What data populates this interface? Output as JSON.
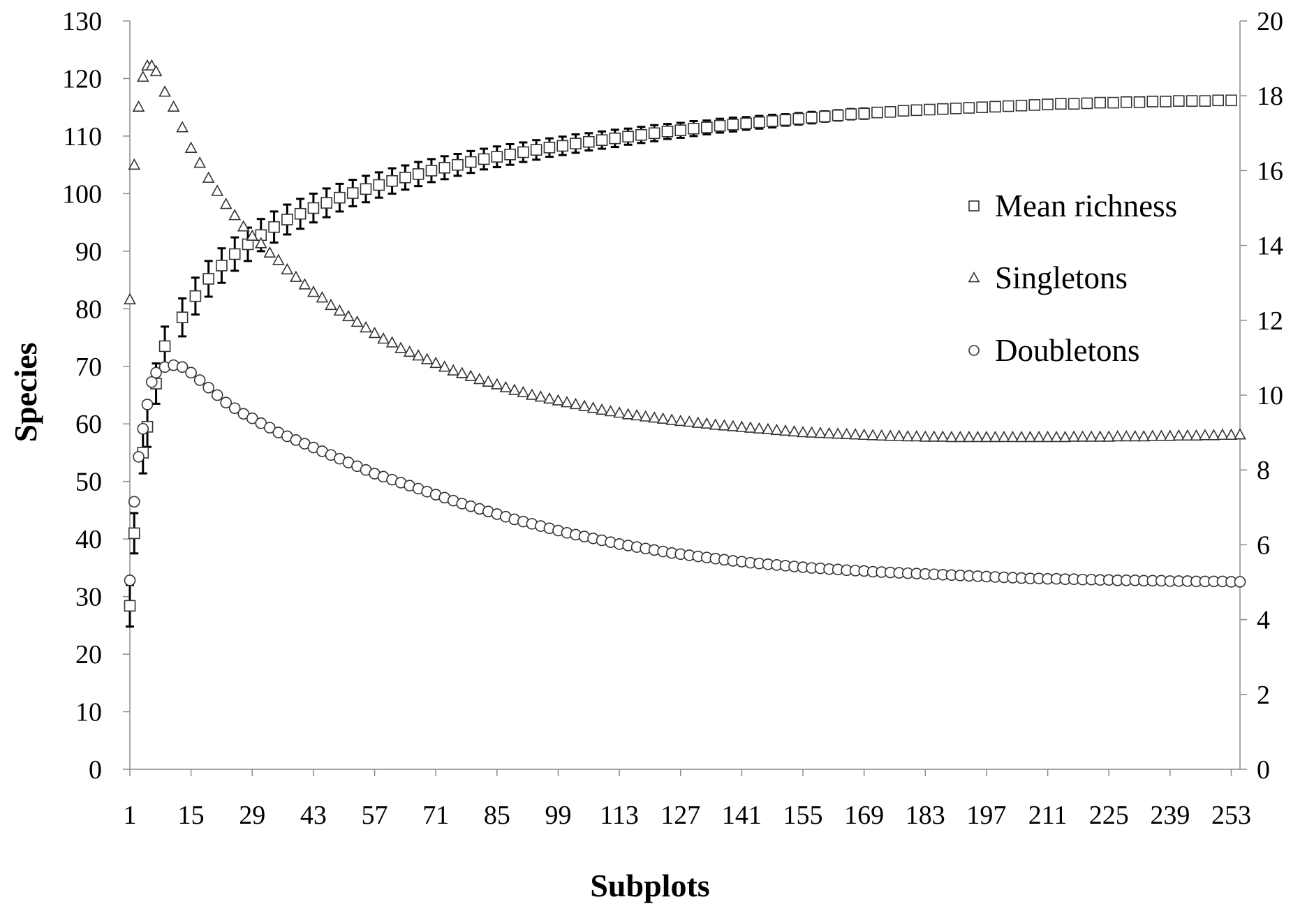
{
  "chart_data": {
    "type": "scatter",
    "xlabel": "Subplots",
    "ylabel": "Species",
    "x_ticks": [
      "1",
      "15",
      "29",
      "43",
      "57",
      "71",
      "85",
      "99",
      "113",
      "127",
      "141",
      "155",
      "169",
      "183",
      "197",
      "211",
      "225",
      "239",
      "253"
    ],
    "y_left_ticks": [
      "0",
      "10",
      "20",
      "30",
      "40",
      "50",
      "60",
      "70",
      "80",
      "90",
      "100",
      "110",
      "120",
      "130"
    ],
    "y_right_ticks": [
      "0",
      "2",
      "4",
      "6",
      "8",
      "10",
      "12",
      "14",
      "16",
      "18",
      "20"
    ],
    "xlim": [
      1,
      255
    ],
    "ylim_left": [
      0,
      130
    ],
    "ylim_right": [
      0,
      20
    ],
    "legend_position": "right",
    "series": [
      {
        "name": "Mean richness",
        "marker": "square",
        "axis": "left",
        "x": [
          1,
          2,
          4,
          5,
          7,
          9,
          13,
          16,
          19,
          22,
          25,
          28,
          31,
          34,
          37,
          40,
          43,
          46,
          49,
          52,
          55,
          58,
          61,
          64,
          67,
          70,
          73,
          76,
          79,
          82,
          85,
          88,
          91,
          94,
          97,
          100,
          103,
          106,
          109,
          112,
          115,
          118,
          121,
          124,
          127,
          130,
          133,
          136,
          139,
          142,
          145,
          148,
          151,
          154,
          157,
          160,
          163,
          166,
          169,
          172,
          175,
          178,
          181,
          184,
          187,
          190,
          193,
          196,
          199,
          202,
          205,
          208,
          211,
          214,
          217,
          220,
          223,
          226,
          229,
          232,
          235,
          238,
          241,
          244,
          247,
          250,
          253
        ],
        "values": [
          28.4,
          41.0,
          55.0,
          59.5,
          67.0,
          73.5,
          78.5,
          82.2,
          85.2,
          87.5,
          89.5,
          91.2,
          92.8,
          94.2,
          95.5,
          96.5,
          97.5,
          98.4,
          99.3,
          100.1,
          100.8,
          101.5,
          102.2,
          102.8,
          103.4,
          104.0,
          104.5,
          105.0,
          105.5,
          106.0,
          106.4,
          106.8,
          107.2,
          107.6,
          108.0,
          108.3,
          108.7,
          109.0,
          109.3,
          109.6,
          109.9,
          110.2,
          110.5,
          110.8,
          111.0,
          111.3,
          111.5,
          111.8,
          112.0,
          112.2,
          112.4,
          112.6,
          112.8,
          113.0,
          113.2,
          113.4,
          113.6,
          113.8,
          113.9,
          114.1,
          114.2,
          114.4,
          114.5,
          114.6,
          114.7,
          114.8,
          114.9,
          115.0,
          115.1,
          115.2,
          115.3,
          115.4,
          115.5,
          115.6,
          115.6,
          115.7,
          115.8,
          115.8,
          115.9,
          115.9,
          116.0,
          116.0,
          116.1,
          116.1,
          116.1,
          116.2,
          116.2
        ],
        "error": [
          3.6,
          3.5,
          3.6,
          3.5,
          3.5,
          3.4,
          3.3,
          3.2,
          3.1,
          3.0,
          2.9,
          2.9,
          2.8,
          2.7,
          2.6,
          2.6,
          2.5,
          2.5,
          2.4,
          2.3,
          2.3,
          2.2,
          2.2,
          2.1,
          2.1,
          2.0,
          2.0,
          1.9,
          1.9,
          1.8,
          1.8,
          1.8,
          1.7,
          1.7,
          1.6,
          1.6,
          1.6,
          1.5,
          1.5,
          1.5,
          1.4,
          1.4,
          1.4,
          1.3,
          1.3,
          1.3,
          1.2,
          1.2,
          1.2,
          1.1,
          1.1,
          1.1,
          1.0,
          1.0,
          1.0,
          0.9,
          0.9,
          0.9,
          0.9,
          0.8,
          0.8,
          0.8,
          0.7,
          0.7,
          0.7,
          0.7,
          0.6,
          0.6,
          0.6,
          0.5,
          0.5,
          0.5,
          0.5,
          0.4,
          0.4,
          0.4,
          0.3,
          0.3,
          0.3,
          0.2,
          0.2,
          0.2,
          0.1,
          0.1,
          0.1,
          0.0,
          0.0
        ]
      },
      {
        "name": "Singletons",
        "marker": "triangle",
        "axis": "right",
        "x": [
          1,
          2,
          3,
          4,
          5,
          6,
          7,
          9,
          11,
          13,
          15,
          17,
          19,
          21,
          23,
          25,
          27,
          29,
          31,
          33,
          35,
          37,
          39,
          41,
          43,
          45,
          47,
          49,
          51,
          53,
          55,
          57,
          59,
          61,
          63,
          65,
          67,
          69,
          71,
          73,
          75,
          77,
          79,
          81,
          83,
          85,
          87,
          89,
          91,
          93,
          95,
          97,
          99,
          101,
          103,
          105,
          107,
          109,
          111,
          113,
          115,
          117,
          119,
          121,
          123,
          125,
          127,
          129,
          131,
          133,
          135,
          137,
          139,
          141,
          143,
          145,
          147,
          149,
          151,
          153,
          155,
          157,
          159,
          161,
          163,
          165,
          167,
          169,
          171,
          173,
          175,
          177,
          179,
          181,
          183,
          185,
          187,
          189,
          191,
          193,
          195,
          197,
          199,
          201,
          203,
          205,
          207,
          209,
          211,
          213,
          215,
          217,
          219,
          221,
          223,
          225,
          227,
          229,
          231,
          233,
          235,
          237,
          239,
          241,
          243,
          245,
          247,
          249,
          251,
          253,
          255
        ],
        "values": [
          12.55,
          16.15,
          17.7,
          18.5,
          18.8,
          18.8,
          18.65,
          18.1,
          17.7,
          17.15,
          16.6,
          16.2,
          15.8,
          15.45,
          15.1,
          14.8,
          14.5,
          14.25,
          14.05,
          13.8,
          13.6,
          13.35,
          13.15,
          12.95,
          12.75,
          12.6,
          12.4,
          12.25,
          12.1,
          11.95,
          11.8,
          11.65,
          11.5,
          11.4,
          11.25,
          11.15,
          11.05,
          10.95,
          10.85,
          10.75,
          10.65,
          10.58,
          10.5,
          10.42,
          10.35,
          10.28,
          10.2,
          10.13,
          10.07,
          10.0,
          9.95,
          9.9,
          9.85,
          9.8,
          9.75,
          9.7,
          9.65,
          9.6,
          9.56,
          9.52,
          9.48,
          9.45,
          9.42,
          9.39,
          9.36,
          9.33,
          9.3,
          9.28,
          9.25,
          9.23,
          9.2,
          9.18,
          9.16,
          9.14,
          9.12,
          9.1,
          9.08,
          9.06,
          9.04,
          9.02,
          9.0,
          8.99,
          8.98,
          8.97,
          8.96,
          8.95,
          8.94,
          8.93,
          8.92,
          8.91,
          8.9,
          8.9,
          8.89,
          8.89,
          8.88,
          8.88,
          8.88,
          8.87,
          8.87,
          8.87,
          8.87,
          8.87,
          8.87,
          8.87,
          8.87,
          8.87,
          8.87,
          8.87,
          8.87,
          8.87,
          8.87,
          8.88,
          8.88,
          8.88,
          8.88,
          8.88,
          8.89,
          8.89,
          8.89,
          8.89,
          8.9,
          8.9,
          8.9,
          8.91,
          8.91,
          8.91,
          8.92,
          8.92,
          8.93,
          8.93,
          8.94
        ]
      },
      {
        "name": "Doubletons",
        "marker": "circle",
        "axis": "right",
        "x": [
          1,
          2,
          3,
          4,
          5,
          6,
          7,
          9,
          11,
          13,
          15,
          17,
          19,
          21,
          23,
          25,
          27,
          29,
          31,
          33,
          35,
          37,
          39,
          41,
          43,
          45,
          47,
          49,
          51,
          53,
          55,
          57,
          59,
          61,
          63,
          65,
          67,
          69,
          71,
          73,
          75,
          77,
          79,
          81,
          83,
          85,
          87,
          89,
          91,
          93,
          95,
          97,
          99,
          101,
          103,
          105,
          107,
          109,
          111,
          113,
          115,
          117,
          119,
          121,
          123,
          125,
          127,
          129,
          131,
          133,
          135,
          137,
          139,
          141,
          143,
          145,
          147,
          149,
          151,
          153,
          155,
          157,
          159,
          161,
          163,
          165,
          167,
          169,
          171,
          173,
          175,
          177,
          179,
          181,
          183,
          185,
          187,
          189,
          191,
          193,
          195,
          197,
          199,
          201,
          203,
          205,
          207,
          209,
          211,
          213,
          215,
          217,
          219,
          221,
          223,
          225,
          227,
          229,
          231,
          233,
          235,
          237,
          239,
          241,
          243,
          245,
          247,
          249,
          251,
          253,
          255
        ],
        "values": [
          5.05,
          7.15,
          8.35,
          9.1,
          9.75,
          10.35,
          10.6,
          10.75,
          10.8,
          10.75,
          10.6,
          10.4,
          10.2,
          10.0,
          9.8,
          9.65,
          9.5,
          9.38,
          9.25,
          9.13,
          9.0,
          8.9,
          8.8,
          8.7,
          8.6,
          8.5,
          8.4,
          8.3,
          8.2,
          8.1,
          8.0,
          7.9,
          7.82,
          7.74,
          7.66,
          7.58,
          7.5,
          7.42,
          7.34,
          7.26,
          7.18,
          7.1,
          7.03,
          6.96,
          6.89,
          6.82,
          6.75,
          6.68,
          6.62,
          6.56,
          6.5,
          6.44,
          6.38,
          6.32,
          6.27,
          6.22,
          6.17,
          6.12,
          6.07,
          6.02,
          5.98,
          5.94,
          5.9,
          5.86,
          5.82,
          5.78,
          5.75,
          5.72,
          5.69,
          5.66,
          5.63,
          5.6,
          5.57,
          5.55,
          5.52,
          5.5,
          5.48,
          5.46,
          5.44,
          5.42,
          5.4,
          5.38,
          5.37,
          5.35,
          5.34,
          5.32,
          5.31,
          5.3,
          5.28,
          5.27,
          5.26,
          5.25,
          5.24,
          5.23,
          5.22,
          5.21,
          5.2,
          5.19,
          5.18,
          5.17,
          5.16,
          5.15,
          5.14,
          5.13,
          5.12,
          5.11,
          5.1,
          5.1,
          5.09,
          5.09,
          5.08,
          5.08,
          5.07,
          5.07,
          5.06,
          5.06,
          5.05,
          5.05,
          5.05,
          5.04,
          5.04,
          5.04,
          5.03,
          5.03,
          5.03,
          5.02,
          5.02,
          5.02,
          5.02,
          5.01,
          5.01
        ]
      }
    ]
  },
  "colors": {
    "marker_stroke": "#333333",
    "marker_fill": "#ffffff",
    "error_bar": "#000000",
    "axis_line": "#8c8c8c",
    "text": "#000000"
  }
}
